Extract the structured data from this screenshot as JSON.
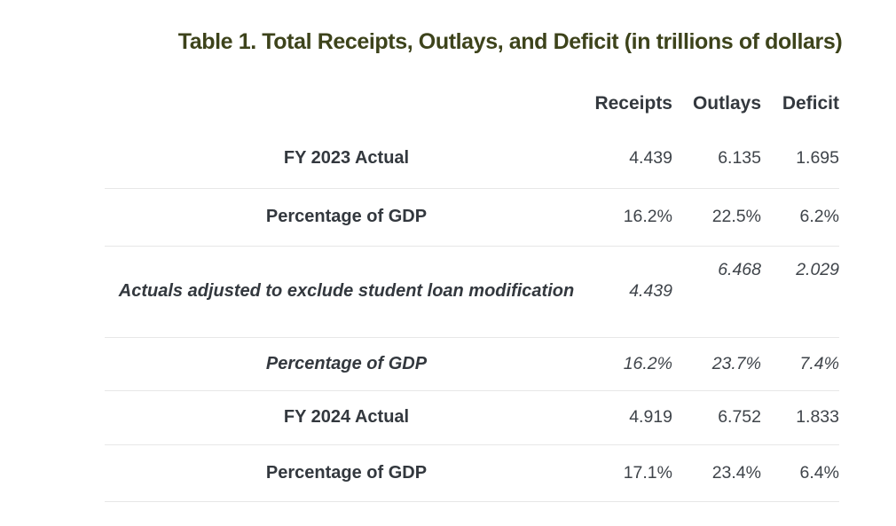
{
  "title": "Table 1. Total Receipts, Outlays, and Deficit (in trillions of dollars)",
  "colors": {
    "title_text": "#3d431b",
    "heading_text": "#33383e",
    "value_text": "#3f444a",
    "divider": "#e7e7e7",
    "background": "#ffffff"
  },
  "chart_data": {
    "type": "table",
    "title": "Table 1. Total Receipts, Outlays, and Deficit (in trillions of dollars)",
    "columns": [
      "Receipts",
      "Outlays",
      "Deficit"
    ],
    "rows": [
      {
        "label": "FY 2023 Actual",
        "values": [
          "4.439",
          "6.135",
          "1.695"
        ],
        "style": "bold"
      },
      {
        "label": "Percentage of GDP",
        "values": [
          "16.2%",
          "22.5%",
          "6.2%"
        ],
        "style": "bold"
      },
      {
        "label": "Actuals adjusted to exclude student loan modification",
        "values": [
          "4.439",
          "6.468",
          "2.029"
        ],
        "style": "bold-italic"
      },
      {
        "label": "Percentage of GDP",
        "values": [
          "16.2%",
          "23.7%",
          "7.4%"
        ],
        "style": "bold-italic"
      },
      {
        "label": "FY 2024 Actual",
        "values": [
          "4.919",
          "6.752",
          "1.833"
        ],
        "style": "bold"
      },
      {
        "label": "Percentage of GDP",
        "values": [
          "17.1%",
          "23.4%",
          "6.4%"
        ],
        "style": "bold"
      }
    ],
    "units": "trillions of dollars",
    "grid": "horizontal row dividers only",
    "legend": "none"
  }
}
